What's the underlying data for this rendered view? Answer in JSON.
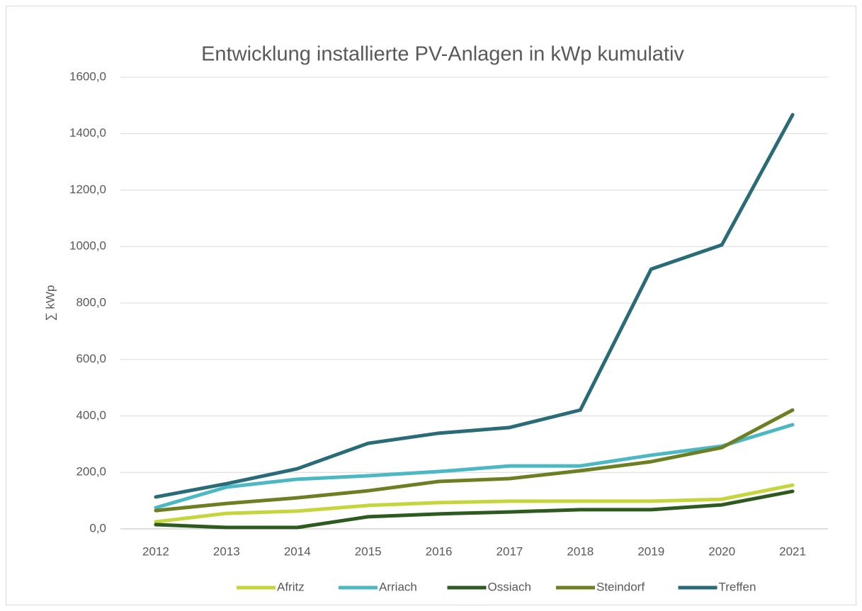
{
  "chart_data": {
    "type": "line",
    "title": "Entwicklung installierte PV-Anlagen in kWp kumulativ",
    "y_label": "∑ kWp",
    "categories": [
      "2012",
      "2013",
      "2014",
      "2015",
      "2016",
      "2017",
      "2018",
      "2019",
      "2020",
      "2021"
    ],
    "series": [
      {
        "name": "Afritz",
        "color": "#c5d63d",
        "values": [
          25,
          55,
          63,
          83,
          93,
          98,
          98,
          98,
          105,
          155
        ]
      },
      {
        "name": "Arriach",
        "color": "#4bb8c4",
        "values": [
          75,
          148,
          176,
          188,
          203,
          223,
          223,
          261,
          293,
          369
        ]
      },
      {
        "name": "Ossiach",
        "color": "#2d5a1f",
        "values": [
          15,
          5,
          5,
          43,
          53,
          60,
          68,
          68,
          85,
          133
        ]
      },
      {
        "name": "Steindorf",
        "color": "#6d7f23",
        "values": [
          65,
          90,
          110,
          135,
          168,
          178,
          206,
          238,
          288,
          421
        ]
      },
      {
        "name": "Treffen",
        "color": "#2a6b78",
        "values": [
          113,
          160,
          213,
          303,
          339,
          359,
          421,
          920,
          1006,
          1467
        ]
      }
    ],
    "ylim": [
      0,
      1600
    ],
    "yticks": [
      {
        "value": 0,
        "label": "0,0"
      },
      {
        "value": 200,
        "label": "200,0"
      },
      {
        "value": 400,
        "label": "400,0"
      },
      {
        "value": 600,
        "label": "600,0"
      },
      {
        "value": 800,
        "label": "800,0"
      },
      {
        "value": 1000,
        "label": "1000,0"
      },
      {
        "value": 1200,
        "label": "1200,0"
      },
      {
        "value": 1400,
        "label": "1400,0"
      },
      {
        "value": 1600,
        "label": "1600,0"
      }
    ],
    "grid": true,
    "legend": "bottom"
  }
}
